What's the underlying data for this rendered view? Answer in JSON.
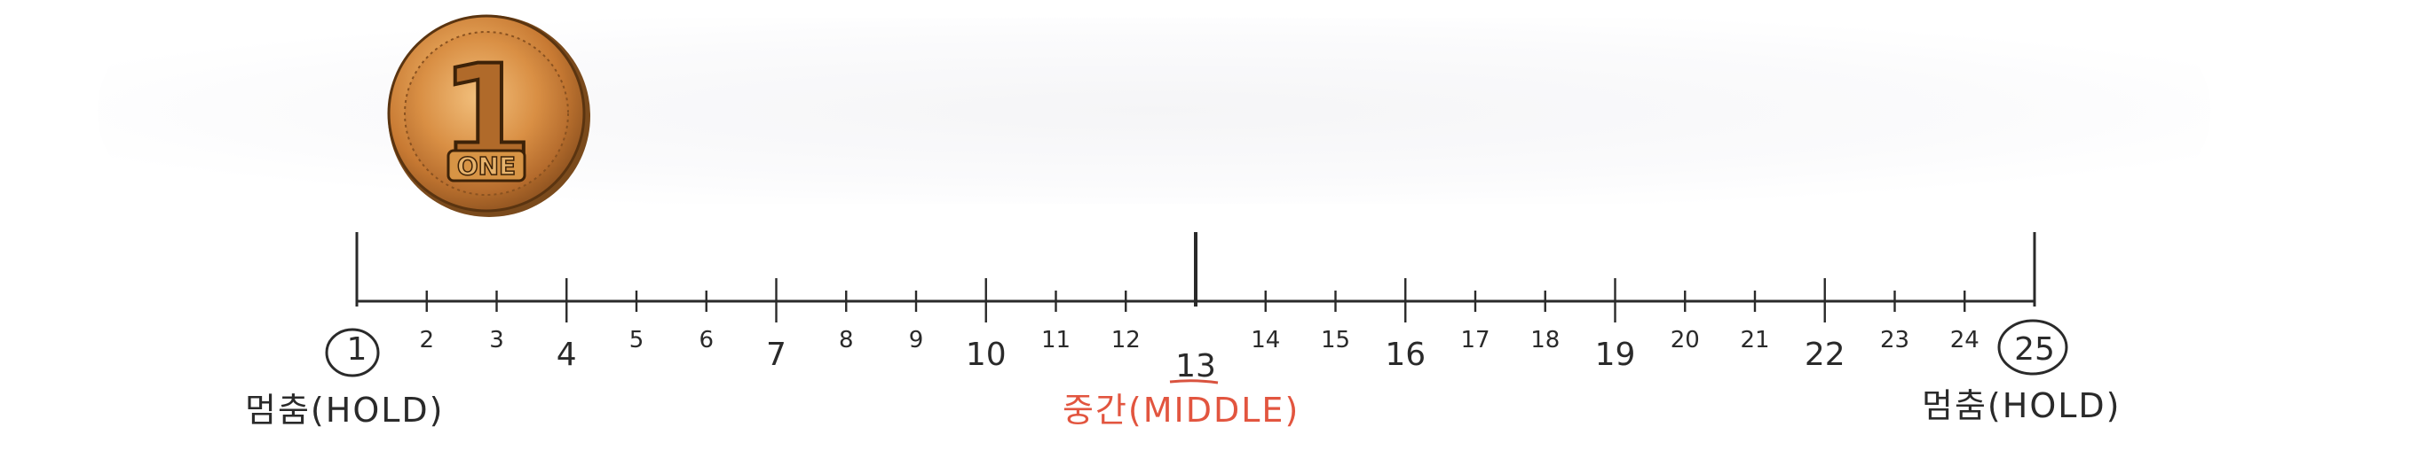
{
  "coin": {
    "numeral": "1",
    "word": "ONE"
  },
  "number_line": {
    "numbers": [
      "1",
      "2",
      "3",
      "4",
      "5",
      "6",
      "7",
      "8",
      "9",
      "10",
      "11",
      "12",
      "13",
      "14",
      "15",
      "16",
      "17",
      "18",
      "19",
      "20",
      "21",
      "22",
      "23",
      "24",
      "25"
    ],
    "circled": [
      "1",
      "25"
    ],
    "middle_number": "13"
  },
  "labels": {
    "hold_left": "멈춤(HOLD)",
    "middle": "중간(MIDDLE)",
    "hold_right": "멈춤(HOLD)"
  },
  "colors": {
    "ink": "#2a2a2a",
    "middle_label": "#e2553f",
    "coin_gold": "#d89a3c",
    "coin_copper": "#c8743a"
  }
}
